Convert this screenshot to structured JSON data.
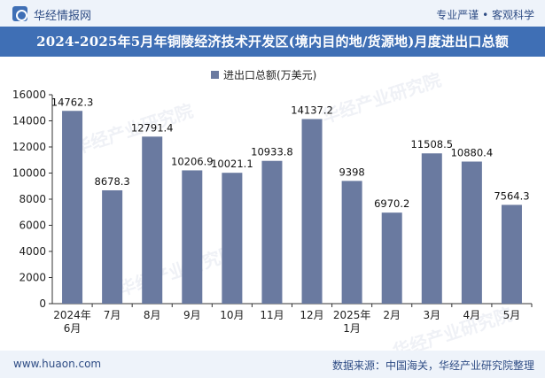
{
  "header": {
    "brand": "华经情报网",
    "slogan": "专业严谨 • 客观科学"
  },
  "footer": {
    "url": "www.huaon.com",
    "source": "数据来源：中国海关，华经产业研究院整理"
  },
  "watermark": {
    "text": "华经产业研究院",
    "url": "www.huaon.com"
  },
  "chart_data": {
    "type": "bar",
    "title": "2024-2025年5月年铜陵经济技术开发区(境内目的地/货源地)月度进出口总额",
    "legend": [
      "进出口总额(万美元)"
    ],
    "categories": [
      "2024年\n6月",
      "7月",
      "8月",
      "9月",
      "10月",
      "11月",
      "12月",
      "2025年\n1月",
      "2月",
      "3月",
      "4月",
      "5月"
    ],
    "values": [
      14762.3,
      8678.3,
      12791.4,
      10206.9,
      10021.1,
      10933.8,
      14137.2,
      9398,
      6970.2,
      11508.5,
      10880.4,
      7564.3
    ],
    "value_labels": [
      "14762.3",
      "8678.3",
      "12791.4",
      "10206.9",
      "10021.1",
      "10933.8",
      "14137.2",
      "9398",
      "6970.2",
      "11508.5",
      "10880.4",
      "7564.3"
    ],
    "ylim": [
      0,
      16000
    ],
    "yticks": [
      0,
      2000,
      4000,
      6000,
      8000,
      10000,
      12000,
      14000,
      16000
    ],
    "xlabel": "",
    "ylabel": "",
    "colors": {
      "bar": "#6a7aa0",
      "axis": "#333333"
    }
  }
}
